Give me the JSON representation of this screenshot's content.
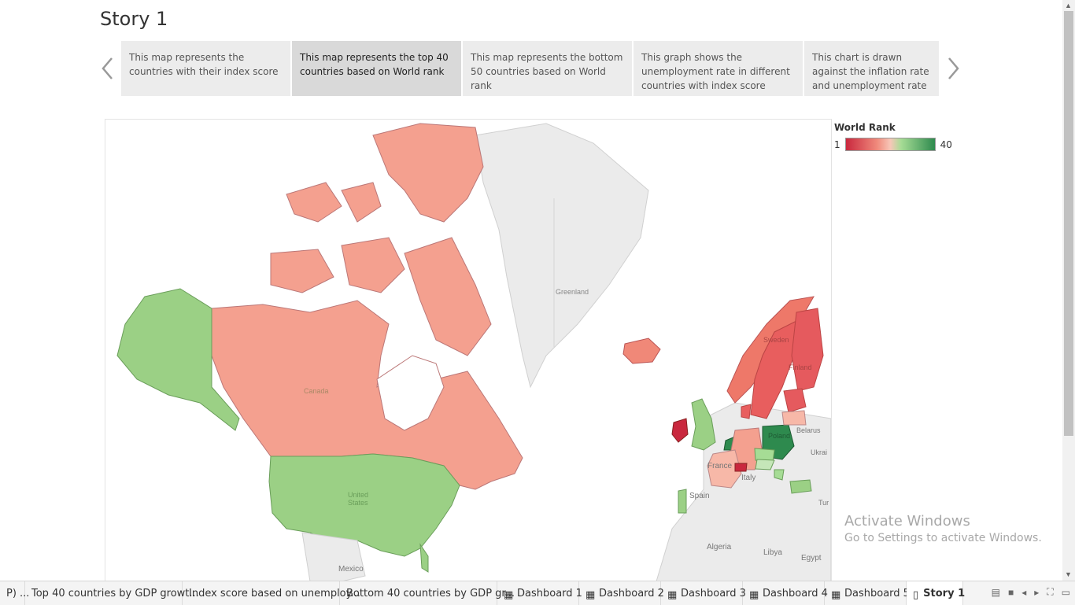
{
  "story": {
    "title": "Story 1"
  },
  "story_points": [
    {
      "text": "This map represents the countries with their index score"
    },
    {
      "text": "This map represents the top 40 countries based on World rank"
    },
    {
      "text": "This map represents the bottom 50 countries based on World rank"
    },
    {
      "text": "This graph shows the unemployment rate in different countries with index score"
    },
    {
      "text": "This chart is drawn against the inflation rate and unemployment rate"
    }
  ],
  "map": {
    "labels": {
      "greenland": "Greenland",
      "canada": "Canada",
      "united_states": "United States",
      "mexico": "Mexico",
      "france": "France",
      "spain": "Spain",
      "italy": "Italy",
      "algeria": "Algeria",
      "libya": "Libya",
      "egypt": "Egypt",
      "belarus": "Belarus",
      "ukraine": "Ukrai",
      "poland": "Poland",
      "finland": "Finland",
      "sweden": "Sweden",
      "turkey": "Tur"
    },
    "colors": {
      "canada": "#f4a08f",
      "usa": "#9bd085",
      "alaska": "#9bd085",
      "greenland": "#ebebeb",
      "iceland": "#f08878",
      "norway": "#ee7869",
      "sweden": "#e85e5e",
      "finland": "#e55a5e",
      "uk": "#9bd085",
      "ireland": "#c9283e",
      "poland": "#2e8a4e",
      "germany": "#f4a08f",
      "france": "#f7b8a8"
    }
  },
  "legend": {
    "title": "World Rank",
    "min": "1",
    "max": "40",
    "color_low": "#c9283e",
    "color_high": "#2e8a4e"
  },
  "watermark": {
    "line1": "Activate Windows",
    "line2": "Go to Settings to activate Windows."
  },
  "tabs": [
    {
      "label": "P) ..."
    },
    {
      "label": "Top 40 countries by GDP growt..."
    },
    {
      "label": "Index score based on unemploy..."
    },
    {
      "label": "Bottom 40 countries by GDP gr..."
    },
    {
      "label": "Dashboard 1"
    },
    {
      "label": "Dashboard 2"
    },
    {
      "label": "Dashboard 3"
    },
    {
      "label": "Dashboard 4"
    },
    {
      "label": "Dashboard 5"
    },
    {
      "label": "Story 1"
    }
  ]
}
